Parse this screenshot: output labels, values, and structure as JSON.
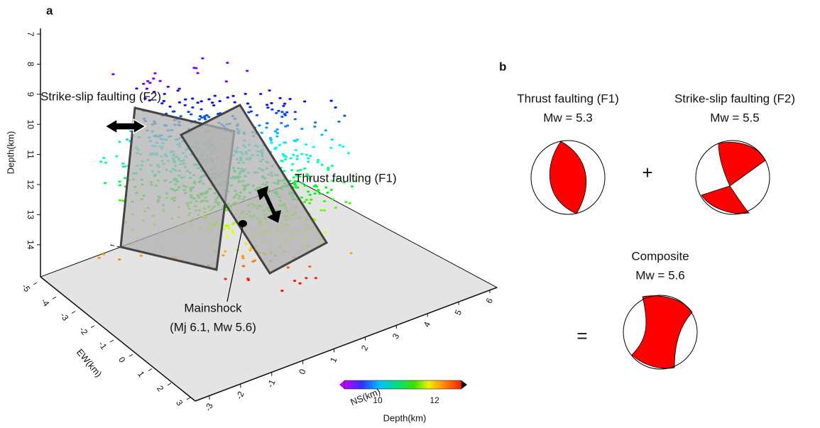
{
  "panel_a": {
    "label": "a",
    "depth_axis": {
      "title": "Depth(km)",
      "ticks": [
        "7",
        "8",
        "9",
        "10",
        "11",
        "12",
        "13",
        "14"
      ]
    },
    "ew_axis": {
      "title": "EW(km)",
      "ticks": [
        "-5",
        "-4",
        "-3",
        "-2",
        "-1",
        "0",
        "1",
        "2",
        "3"
      ]
    },
    "ns_axis": {
      "title": "NS(km)",
      "ticks": [
        "-3",
        "-2",
        "-1",
        "0",
        "1",
        "2",
        "3",
        "4",
        "5",
        "6"
      ]
    },
    "colorbar": {
      "title": "Depth(km)",
      "ticks": [
        "10",
        "12"
      ]
    },
    "annotations": {
      "f2": "Strike-slip faulting (F2)",
      "f1": "Thrust faulting (F1)",
      "mainshock": "Mainshock",
      "magnitude": "(Mj 6.1, Mw 5.6)"
    }
  },
  "panel_b": {
    "label": "b",
    "f1": {
      "title": "Thrust faulting (F1)",
      "magnitude": "Mw = 5.3"
    },
    "f2": {
      "title": "Strike-slip faulting (F2)",
      "magnitude": "Mw = 5.5"
    },
    "plus": "+",
    "composite": {
      "title": "Composite",
      "magnitude": "Mw = 5.6"
    },
    "equals": "="
  }
}
